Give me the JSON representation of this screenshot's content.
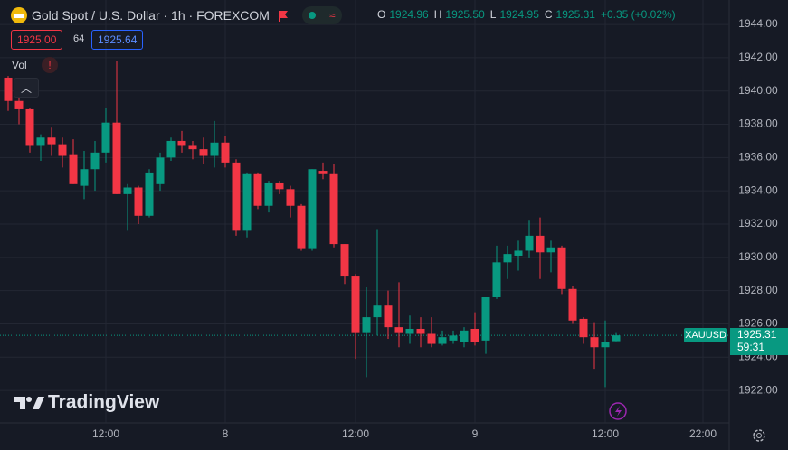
{
  "header": {
    "title": "Gold Spot / U.S. Dollar · 1h · FOREXCOM",
    "ohlc": [
      [
        "O",
        "1924.96"
      ],
      [
        "H",
        "1925.50"
      ],
      [
        "L",
        "1924.95"
      ],
      [
        "C",
        "1925.31"
      ]
    ],
    "change": "+0.35 (+0.02%)"
  },
  "trade": {
    "bid": "1925.00",
    "spread": "64",
    "ask": "1925.64"
  },
  "volume_label": "Vol",
  "watermark": "TradingView",
  "chart_data": {
    "type": "candlestick",
    "categories": [
      null,
      null,
      null,
      null,
      null,
      null,
      null,
      null,
      null,
      "12:00",
      null,
      null,
      null,
      null,
      null,
      null,
      null,
      null,
      null,
      null,
      "8",
      null,
      null,
      null,
      null,
      null,
      null,
      null,
      null,
      null,
      null,
      null,
      "12:00",
      null,
      null,
      null,
      null,
      null,
      null,
      null,
      null,
      null,
      null,
      "9",
      null,
      null,
      null,
      null,
      null,
      null,
      null,
      null,
      null,
      null,
      null,
      "12:00",
      null,
      null,
      null,
      null,
      null,
      null,
      null,
      null,
      "22:00"
    ],
    "series": [
      {
        "name": "XAUUSD",
        "open": [
          1940.8,
          1939.4,
          1938.9,
          1936.7,
          1937.2,
          1936.8,
          1936.2,
          1934.3,
          1935.3,
          1936.3,
          1938.1,
          1933.8,
          1934.2,
          1932.5,
          1934.4,
          1936.0,
          1937.0,
          1936.7,
          1936.5,
          1936.1,
          1936.9,
          1935.7,
          1931.6,
          1935.0,
          1933.1,
          1934.5,
          1934.1,
          1933.1,
          1930.5,
          1935.2,
          1935.0,
          1930.8,
          1928.9,
          1925.5,
          1926.4,
          1927.1,
          1925.8,
          1925.4,
          1925.7,
          1925.4,
          1924.8,
          1925.0,
          1924.9,
          1925.7,
          1925.0,
          1927.6,
          1929.7,
          1930.1,
          1930.4,
          1931.3,
          1930.3,
          1930.6,
          1928.1,
          1926.3,
          1925.2,
          1924.6,
          1924.96,
          null,
          null,
          null,
          null,
          null,
          null,
          null,
          null
        ],
        "high": [
          1940.9,
          1940.0,
          1939.0,
          1937.4,
          1937.8,
          1937.2,
          1937.1,
          1936.4,
          1937.0,
          1939.0,
          1941.8,
          1934.4,
          1934.3,
          1935.3,
          1936.3,
          1937.2,
          1937.6,
          1937.0,
          1937.2,
          1938.2,
          1937.3,
          1935.9,
          1935.1,
          1935.1,
          1934.6,
          1934.6,
          1934.3,
          1933.2,
          1935.3,
          1935.7,
          1935.6,
          1930.8,
          1929.0,
          1928.2,
          1931.7,
          1928.0,
          1928.5,
          1926.5,
          1926.4,
          1926.4,
          1925.6,
          1925.6,
          1925.8,
          1926.7,
          1927.6,
          1930.7,
          1930.7,
          1931.0,
          1932.2,
          1932.4,
          1931.0,
          1930.7,
          1928.3,
          1926.4,
          1926.1,
          1926.2,
          1925.5,
          null,
          null,
          null,
          null,
          null,
          null,
          null,
          null
        ],
        "low": [
          1938.8,
          1938.0,
          1936.3,
          1935.8,
          1936.1,
          1935.4,
          1934.4,
          1933.5,
          1934.0,
          1935.7,
          1933.8,
          1931.6,
          1932.0,
          1932.4,
          1934.0,
          1935.8,
          1936.3,
          1935.9,
          1935.6,
          1935.4,
          1935.4,
          1931.3,
          1931.2,
          1932.9,
          1932.7,
          1933.8,
          1932.4,
          1930.4,
          1930.4,
          1934.7,
          1930.6,
          1928.4,
          1923.9,
          1922.8,
          1925.3,
          1925.1,
          1924.6,
          1924.8,
          1924.6,
          1924.6,
          1924.7,
          1924.8,
          1924.6,
          1924.7,
          1924.2,
          1927.5,
          1928.7,
          1929.2,
          1930.0,
          1928.7,
          1929.1,
          1927.8,
          1926.0,
          1924.8,
          1923.3,
          1922.2,
          1924.95,
          null,
          null,
          null,
          null,
          null,
          null,
          null,
          null
        ],
        "close": [
          1939.4,
          1938.9,
          1936.7,
          1937.2,
          1936.8,
          1936.1,
          1934.4,
          1935.3,
          1936.3,
          1938.1,
          1933.8,
          1934.2,
          1932.5,
          1935.1,
          1936.0,
          1937.0,
          1936.7,
          1936.5,
          1936.1,
          1936.9,
          1935.7,
          1931.6,
          1935.0,
          1933.1,
          1934.5,
          1934.1,
          1933.1,
          1930.5,
          1935.3,
          1935.0,
          1930.8,
          1928.9,
          1925.5,
          1926.4,
          1927.1,
          1925.8,
          1925.5,
          1925.7,
          1925.4,
          1924.8,
          1925.2,
          1925.3,
          1925.6,
          1924.9,
          1927.6,
          1929.7,
          1930.2,
          1930.4,
          1931.3,
          1930.3,
          1930.6,
          1928.1,
          1926.2,
          1925.2,
          1924.6,
          1924.9,
          1925.31,
          null,
          null,
          null,
          null,
          null,
          null,
          null,
          null
        ]
      }
    ],
    "up_color": "#089981",
    "down_color": "#f23645",
    "ylim": [
      1920.05,
      1945.47
    ],
    "yticks": [
      {
        "value": 1922,
        "label": "1922.00"
      },
      {
        "value": 1924,
        "label": "1924.00"
      },
      {
        "value": 1926,
        "label": "1926.00"
      },
      {
        "value": 1928,
        "label": "1928.00"
      },
      {
        "value": 1930,
        "label": "1930.00"
      },
      {
        "value": 1932,
        "label": "1932.00"
      },
      {
        "value": 1934,
        "label": "1934.00"
      },
      {
        "value": 1936,
        "label": "1936.00"
      },
      {
        "value": 1938,
        "label": "1938.00"
      },
      {
        "value": 1940,
        "label": "1940.00"
      },
      {
        "value": 1942,
        "label": "1942.00"
      },
      {
        "value": 1944,
        "label": "1944.00"
      }
    ],
    "grid": true,
    "last_price": 1925.31,
    "countdown": "59:31"
  }
}
